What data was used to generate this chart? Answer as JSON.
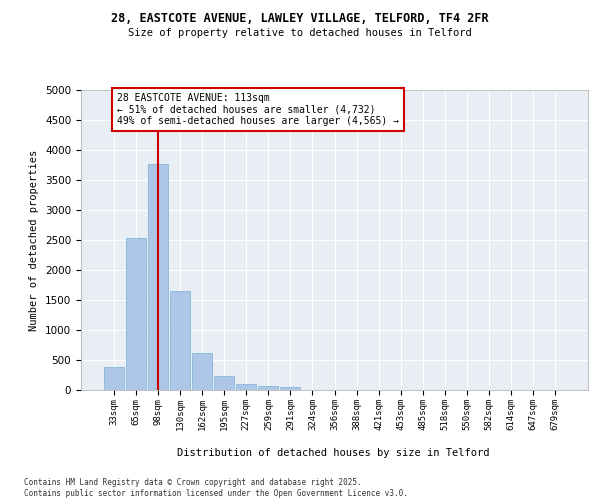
{
  "title_line1": "28, EASTCOTE AVENUE, LAWLEY VILLAGE, TELFORD, TF4 2FR",
  "title_line2": "Size of property relative to detached houses in Telford",
  "xlabel": "Distribution of detached houses by size in Telford",
  "ylabel": "Number of detached properties",
  "categories": [
    "33sqm",
    "65sqm",
    "98sqm",
    "130sqm",
    "162sqm",
    "195sqm",
    "227sqm",
    "259sqm",
    "291sqm",
    "324sqm",
    "356sqm",
    "388sqm",
    "421sqm",
    "453sqm",
    "485sqm",
    "518sqm",
    "550sqm",
    "582sqm",
    "614sqm",
    "647sqm",
    "679sqm"
  ],
  "values": [
    380,
    2530,
    3760,
    1650,
    610,
    240,
    100,
    60,
    50,
    0,
    0,
    0,
    0,
    0,
    0,
    0,
    0,
    0,
    0,
    0,
    0
  ],
  "bar_color": "#aec6e8",
  "bar_edge_color": "#7ab0d4",
  "background_color": "#e8eef4",
  "grid_color": "#ffffff",
  "vline_x": 2,
  "vline_color": "#cc0000",
  "annotation_text": "28 EASTCOTE AVENUE: 113sqm\n← 51% of detached houses are smaller (4,732)\n49% of semi-detached houses are larger (4,565) →",
  "annotation_box_color": "#ffffff",
  "annotation_box_edge_color": "#cc0000",
  "ylim": [
    0,
    5000
  ],
  "yticks": [
    0,
    500,
    1000,
    1500,
    2000,
    2500,
    3000,
    3500,
    4000,
    4500,
    5000
  ],
  "footer_line1": "Contains HM Land Registry data © Crown copyright and database right 2025.",
  "footer_line2": "Contains public sector information licensed under the Open Government Licence v3.0."
}
